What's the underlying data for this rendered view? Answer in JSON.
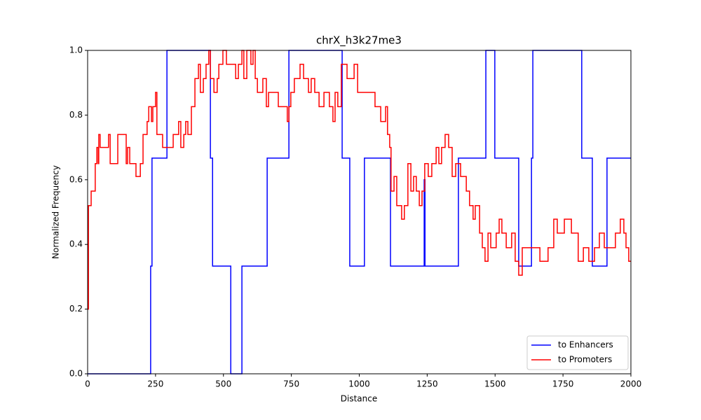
{
  "chart_data": {
    "type": "line",
    "drawstyle": "steps-post",
    "title": "chrX_h3k27me3",
    "x_label": "Distance",
    "y_label": "Normalized Frequency",
    "xlim": [
      0,
      2000
    ],
    "ylim": [
      0,
      1
    ],
    "xticks": [
      0,
      250,
      500,
      750,
      1000,
      1250,
      1500,
      1750,
      2000
    ],
    "yticks": [
      {
        "value": 0,
        "label": "0.0"
      },
      {
        "value": 0.2,
        "label": "0.2"
      },
      {
        "value": 0.4,
        "label": "0.4"
      },
      {
        "value": 0.6,
        "label": "0.6"
      },
      {
        "value": 0.8,
        "label": "0.8"
      },
      {
        "value": 1,
        "label": "1.0"
      }
    ],
    "grid": false,
    "legend": "lower right",
    "series": [
      {
        "name": "to Enhancers",
        "color": "#0000ff",
        "x": [
          0,
          232,
          237,
          292,
          452,
          460,
          527,
          568,
          661,
          741,
          937,
          965,
          1019,
          1115,
          1239,
          1242,
          1365,
          1466,
          1499,
          1587,
          1634,
          1639,
          1819,
          1858,
          1912,
          2000
        ],
        "values": [
          0,
          0.333,
          0.667,
          1,
          0.667,
          0.333,
          0,
          0.333,
          0.667,
          1,
          0.667,
          0.333,
          0.667,
          0.333,
          0.6,
          0.333,
          0.667,
          1,
          0.667,
          0.333,
          0.667,
          1,
          0.667,
          0.333,
          0.667,
          0.667
        ]
      },
      {
        "name": "to Promoters",
        "color": "#ff0000",
        "x": [
          0,
          3,
          13,
          28,
          34,
          39,
          41,
          46,
          77,
          83,
          111,
          142,
          147,
          155,
          178,
          194,
          204,
          219,
          225,
          235,
          240,
          250,
          255,
          276,
          315,
          335,
          343,
          354,
          361,
          369,
          382,
          395,
          408,
          415,
          426,
          436,
          446,
          452,
          465,
          477,
          483,
          498,
          511,
          545,
          555,
          568,
          575,
          586,
          601,
          609,
          617,
          625,
          645,
          658,
          666,
          702,
          735,
          741,
          748,
          761,
          782,
          795,
          813,
          823,
          836,
          852,
          870,
          890,
          903,
          911,
          921,
          934,
          955,
          981,
          994,
          1019,
          1058,
          1079,
          1097,
          1104,
          1112,
          1117,
          1128,
          1138,
          1156,
          1166,
          1179,
          1190,
          1200,
          1210,
          1221,
          1231,
          1241,
          1254,
          1267,
          1283,
          1293,
          1303,
          1316,
          1329,
          1342,
          1355,
          1373,
          1394,
          1406,
          1419,
          1427,
          1443,
          1453,
          1463,
          1474,
          1484,
          1504,
          1515,
          1525,
          1541,
          1561,
          1574,
          1587,
          1600,
          1665,
          1695,
          1716,
          1729,
          1755,
          1781,
          1806,
          1825,
          1845,
          1866,
          1884,
          1902,
          1923,
          1943,
          1961,
          1974,
          1982,
          1992,
          2000
        ],
        "values": [
          0.2,
          0.52,
          0.565,
          0.65,
          0.7,
          0.65,
          0.74,
          0.7,
          0.74,
          0.65,
          0.74,
          0.65,
          0.7,
          0.65,
          0.61,
          0.65,
          0.74,
          0.78,
          0.826,
          0.78,
          0.826,
          0.87,
          0.74,
          0.7,
          0.74,
          0.78,
          0.7,
          0.74,
          0.78,
          0.74,
          0.826,
          0.913,
          0.957,
          0.87,
          0.913,
          0.957,
          1.0,
          0.913,
          0.87,
          0.913,
          0.957,
          1.0,
          0.957,
          0.913,
          0.957,
          1.0,
          0.913,
          1.0,
          0.957,
          1.0,
          0.913,
          0.87,
          0.913,
          0.826,
          0.87,
          0.826,
          0.78,
          0.826,
          0.87,
          0.913,
          0.957,
          0.913,
          0.87,
          0.913,
          0.87,
          0.826,
          0.87,
          0.826,
          0.78,
          0.87,
          0.826,
          0.957,
          0.913,
          0.957,
          0.87,
          0.87,
          0.826,
          0.78,
          0.826,
          0.74,
          0.7,
          0.565,
          0.61,
          0.52,
          0.478,
          0.52,
          0.65,
          0.565,
          0.61,
          0.565,
          0.52,
          0.565,
          0.65,
          0.61,
          0.65,
          0.7,
          0.65,
          0.7,
          0.74,
          0.7,
          0.61,
          0.65,
          0.61,
          0.565,
          0.52,
          0.478,
          0.52,
          0.435,
          0.39,
          0.348,
          0.435,
          0.39,
          0.435,
          0.478,
          0.435,
          0.39,
          0.435,
          0.348,
          0.305,
          0.39,
          0.348,
          0.39,
          0.478,
          0.435,
          0.478,
          0.435,
          0.348,
          0.39,
          0.348,
          0.39,
          0.435,
          0.39,
          0.39,
          0.435,
          0.478,
          0.435,
          0.39,
          0.348,
          0.348
        ]
      }
    ]
  }
}
